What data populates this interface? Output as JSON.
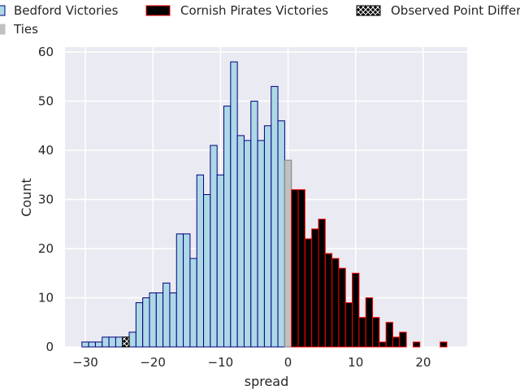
{
  "chart_data": {
    "type": "bar",
    "xlabel": "spread",
    "ylabel": "Count",
    "xlim": [
      -33,
      26.5
    ],
    "ylim": [
      0,
      61
    ],
    "x_ticks": [
      -30,
      -20,
      -10,
      0,
      10,
      20
    ],
    "x_tick_labels": [
      "−30",
      "−20",
      "−10",
      "0",
      "10",
      "20"
    ],
    "y_ticks": [
      0,
      10,
      20,
      30,
      40,
      50,
      60
    ],
    "y_tick_labels": [
      "0",
      "10",
      "20",
      "30",
      "40",
      "50",
      "60"
    ],
    "bin_width": 1,
    "grid": true,
    "legend_position": "top",
    "legend": [
      {
        "key": "bedford",
        "label": "Bedford Victories"
      },
      {
        "key": "cornish",
        "label": "Cornish Pirates Victories"
      },
      {
        "key": "observed",
        "label": "Observed Point Difference"
      },
      {
        "key": "ties",
        "label": "Ties"
      }
    ],
    "colors": {
      "background": "#eaeaf2",
      "grid": "#ffffff",
      "bedford_fill": "#add8e6",
      "bedford_edge": "#000080",
      "cornish_fill": "#000000",
      "cornish_edge": "#ff0000",
      "ties_fill": "#c0c0c0",
      "ties_edge": "#808080",
      "observed_fill": "#000000",
      "observed_hatch": "#ffffff"
    },
    "series": [
      {
        "name": "Bedford Victories",
        "x": [
          -30,
          -29,
          -28,
          -27,
          -26,
          -25,
          -24,
          -23,
          -22,
          -21,
          -20,
          -19,
          -18,
          -17,
          -16,
          -15,
          -14,
          -13,
          -12,
          -11,
          -10,
          -9,
          -8,
          -7,
          -6,
          -5,
          -4,
          -3,
          -2,
          -1
        ],
        "values": [
          1,
          1,
          1,
          2,
          2,
          2,
          2,
          3,
          9,
          10,
          11,
          11,
          13,
          11,
          23,
          23,
          18,
          35,
          31,
          41,
          35,
          49,
          58,
          43,
          42,
          50,
          42,
          45,
          53,
          46
        ]
      },
      {
        "name": "Ties",
        "x": [
          0
        ],
        "values": [
          38
        ]
      },
      {
        "name": "Cornish Pirates Victories",
        "x": [
          1,
          2,
          3,
          4,
          5,
          6,
          7,
          8,
          9,
          10,
          11,
          12,
          13,
          14,
          15,
          16,
          17,
          18,
          19,
          20,
          21,
          22,
          23
        ],
        "values": [
          32,
          32,
          22,
          24,
          26,
          19,
          18,
          16,
          9,
          15,
          6,
          10,
          6,
          1,
          5,
          2,
          3,
          0,
          1,
          0,
          0,
          0,
          1
        ]
      },
      {
        "name": "Observed Point Difference",
        "x": [
          -24
        ],
        "values": [
          2
        ]
      }
    ]
  }
}
